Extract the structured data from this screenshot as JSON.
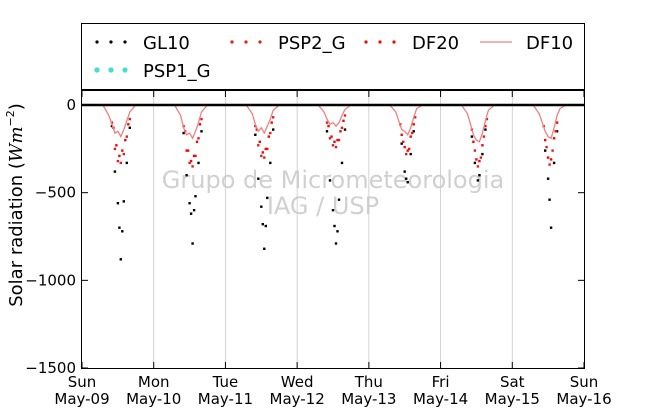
{
  "chart_data": {
    "type": "scatter",
    "title": "",
    "xlabel": "",
    "ylabel": "Solar radiation (Wm^-2)",
    "ylabel_prefix": "Solar radiation (",
    "ylabel_unit": "Wm",
    "ylabel_exp": "−2",
    "ylabel_suffix": ")",
    "ylim": [
      -1500,
      80
    ],
    "yticks": [
      {
        "value": 0,
        "label": "0"
      },
      {
        "value": -500,
        "label": "−500"
      },
      {
        "value": -1000,
        "label": "−1000"
      },
      {
        "value": -1500,
        "label": "−1500"
      }
    ],
    "xlim": [
      "2010-05-09",
      "2010-05-16"
    ],
    "xticks": [
      {
        "date": "2010-05-09",
        "day": "Sun",
        "date_label": "May-09"
      },
      {
        "date": "2010-05-10",
        "day": "Mon",
        "date_label": "May-10"
      },
      {
        "date": "2010-05-11",
        "day": "Tue",
        "date_label": "May-11"
      },
      {
        "date": "2010-05-12",
        "day": "Wed",
        "date_label": "May-12"
      },
      {
        "date": "2010-05-13",
        "day": "Thu",
        "date_label": "May-13"
      },
      {
        "date": "2010-05-14",
        "day": "Fri",
        "date_label": "May-14"
      },
      {
        "date": "2010-05-15",
        "day": "Sat",
        "date_label": "May-15"
      },
      {
        "date": "2010-05-16",
        "day": "Sun",
        "date_label": "May-16"
      }
    ],
    "grid": true,
    "legend_placement": "top",
    "watermark": [
      "Grupo de Micrometeorologia",
      "IAG / USP"
    ],
    "series": [
      {
        "name": "GL10",
        "marker": "dots",
        "color": "#000000",
        "points": [
          [
            "2010-05-09T10:00",
            -120
          ],
          [
            "2010-05-09T11:00",
            -380
          ],
          [
            "2010-05-09T12:00",
            -560
          ],
          [
            "2010-05-09T12:30",
            -700
          ],
          [
            "2010-05-09T13:00",
            -880
          ],
          [
            "2010-05-09T13:30",
            -720
          ],
          [
            "2010-05-09T14:00",
            -550
          ],
          [
            "2010-05-09T15:00",
            -330
          ],
          [
            "2010-05-09T16:00",
            -130
          ],
          [
            "2010-05-10T10:00",
            -160
          ],
          [
            "2010-05-10T11:00",
            -400
          ],
          [
            "2010-05-10T12:00",
            -560
          ],
          [
            "2010-05-10T12:30",
            -620
          ],
          [
            "2010-05-10T13:00",
            -790
          ],
          [
            "2010-05-10T13:30",
            -600
          ],
          [
            "2010-05-10T14:00",
            -520
          ],
          [
            "2010-05-10T15:00",
            -330
          ],
          [
            "2010-05-10T16:00",
            -150
          ],
          [
            "2010-05-11T10:00",
            -170
          ],
          [
            "2010-05-11T11:00",
            -420
          ],
          [
            "2010-05-11T12:00",
            -580
          ],
          [
            "2010-05-11T12:30",
            -680
          ],
          [
            "2010-05-11T13:00",
            -820
          ],
          [
            "2010-05-11T13:30",
            -690
          ],
          [
            "2010-05-11T14:00",
            -530
          ],
          [
            "2010-05-11T15:00",
            -330
          ],
          [
            "2010-05-11T16:00",
            -140
          ],
          [
            "2010-05-12T10:00",
            -150
          ],
          [
            "2010-05-12T11:00",
            -430
          ],
          [
            "2010-05-12T12:00",
            -600
          ],
          [
            "2010-05-12T12:30",
            -690
          ],
          [
            "2010-05-12T13:00",
            -790
          ],
          [
            "2010-05-12T13:30",
            -720
          ],
          [
            "2010-05-12T14:00",
            -540
          ],
          [
            "2010-05-12T15:00",
            -330
          ],
          [
            "2010-05-12T16:00",
            -140
          ],
          [
            "2010-05-13T11:00",
            -220
          ],
          [
            "2010-05-13T12:00",
            -380
          ],
          [
            "2010-05-13T12:30",
            -420
          ],
          [
            "2010-05-13T13:00",
            -440
          ],
          [
            "2010-05-13T14:00",
            -280
          ],
          [
            "2010-05-13T15:00",
            -150
          ],
          [
            "2010-05-14T10:30",
            -180
          ],
          [
            "2010-05-14T11:30",
            -330
          ],
          [
            "2010-05-14T12:30",
            -430
          ],
          [
            "2010-05-14T13:00",
            -400
          ],
          [
            "2010-05-14T14:00",
            -280
          ],
          [
            "2010-05-14T15:00",
            -140
          ],
          [
            "2010-05-15T11:00",
            -260
          ],
          [
            "2010-05-15T12:00",
            -420
          ],
          [
            "2010-05-15T12:30",
            -540
          ],
          [
            "2010-05-15T13:00",
            -700
          ],
          [
            "2010-05-15T14:00",
            -330
          ],
          [
            "2010-05-15T15:00",
            -150
          ]
        ]
      },
      {
        "name": "PSP2_G",
        "marker": "dots",
        "color": "#e41a1c",
        "points": [
          [
            "2010-05-09T10:00",
            -100
          ],
          [
            "2010-05-09T11:00",
            -250
          ],
          [
            "2010-05-09T12:00",
            -320
          ],
          [
            "2010-05-09T13:00",
            -330
          ],
          [
            "2010-05-09T14:00",
            -280
          ],
          [
            "2010-05-09T15:00",
            -180
          ],
          [
            "2010-05-09T16:00",
            -80
          ],
          [
            "2010-05-10T10:00",
            -120
          ],
          [
            "2010-05-10T11:00",
            -260
          ],
          [
            "2010-05-10T12:00",
            -330
          ],
          [
            "2010-05-10T13:00",
            -350
          ],
          [
            "2010-05-10T14:00",
            -290
          ],
          [
            "2010-05-10T15:00",
            -190
          ],
          [
            "2010-05-10T16:00",
            -80
          ],
          [
            "2010-05-11T10:00",
            -120
          ],
          [
            "2010-05-11T11:00",
            -230
          ],
          [
            "2010-05-11T12:00",
            -290
          ],
          [
            "2010-05-11T13:00",
            -300
          ],
          [
            "2010-05-11T14:00",
            -250
          ],
          [
            "2010-05-11T15:00",
            -160
          ],
          [
            "2010-05-11T16:00",
            -70
          ],
          [
            "2010-05-12T10:00",
            -100
          ],
          [
            "2010-05-12T11:00",
            -190
          ],
          [
            "2010-05-12T12:00",
            -230
          ],
          [
            "2010-05-12T13:00",
            -240
          ],
          [
            "2010-05-12T14:00",
            -200
          ],
          [
            "2010-05-12T15:00",
            -130
          ],
          [
            "2010-05-12T16:00",
            -60
          ],
          [
            "2010-05-13T10:30",
            -110
          ],
          [
            "2010-05-13T11:30",
            -210
          ],
          [
            "2010-05-13T12:30",
            -280
          ],
          [
            "2010-05-13T13:30",
            -250
          ],
          [
            "2010-05-13T14:30",
            -160
          ],
          [
            "2010-05-13T15:30",
            -70
          ],
          [
            "2010-05-14T10:30",
            -140
          ],
          [
            "2010-05-14T11:30",
            -260
          ],
          [
            "2010-05-14T12:30",
            -350
          ],
          [
            "2010-05-14T13:30",
            -300
          ],
          [
            "2010-05-14T14:30",
            -180
          ],
          [
            "2010-05-14T15:30",
            -80
          ],
          [
            "2010-05-15T10:30",
            -120
          ],
          [
            "2010-05-15T11:30",
            -240
          ],
          [
            "2010-05-15T12:30",
            -340
          ],
          [
            "2010-05-15T13:30",
            -260
          ],
          [
            "2010-05-15T14:30",
            -150
          ]
        ]
      },
      {
        "name": "DF20",
        "marker": "dots",
        "color": "#ff0000",
        "points": [
          [
            "2010-05-09T10:30",
            -130
          ],
          [
            "2010-05-09T11:30",
            -230
          ],
          [
            "2010-05-09T12:30",
            -290
          ],
          [
            "2010-05-09T13:30",
            -260
          ],
          [
            "2010-05-09T14:30",
            -200
          ],
          [
            "2010-05-09T15:30",
            -110
          ],
          [
            "2010-05-10T10:30",
            -150
          ],
          [
            "2010-05-10T11:30",
            -260
          ],
          [
            "2010-05-10T12:30",
            -320
          ],
          [
            "2010-05-10T13:30",
            -290
          ],
          [
            "2010-05-10T14:30",
            -210
          ],
          [
            "2010-05-10T15:30",
            -110
          ],
          [
            "2010-05-11T10:30",
            -140
          ],
          [
            "2010-05-11T11:30",
            -210
          ],
          [
            "2010-05-11T12:30",
            -270
          ],
          [
            "2010-05-11T13:30",
            -250
          ],
          [
            "2010-05-11T14:30",
            -180
          ],
          [
            "2010-05-11T15:30",
            -100
          ],
          [
            "2010-05-12T10:30",
            -120
          ],
          [
            "2010-05-12T11:30",
            -180
          ],
          [
            "2010-05-12T12:30",
            -210
          ],
          [
            "2010-05-12T13:30",
            -200
          ],
          [
            "2010-05-12T14:30",
            -150
          ],
          [
            "2010-05-12T15:30",
            -90
          ],
          [
            "2010-05-13T11:00",
            -170
          ],
          [
            "2010-05-13T12:00",
            -240
          ],
          [
            "2010-05-13T13:00",
            -260
          ],
          [
            "2010-05-13T14:00",
            -180
          ],
          [
            "2010-05-13T15:00",
            -110
          ],
          [
            "2010-05-14T11:00",
            -210
          ],
          [
            "2010-05-14T12:00",
            -310
          ],
          [
            "2010-05-14T13:00",
            -320
          ],
          [
            "2010-05-14T14:00",
            -230
          ],
          [
            "2010-05-14T15:00",
            -120
          ],
          [
            "2010-05-15T11:00",
            -200
          ],
          [
            "2010-05-15T12:00",
            -300
          ],
          [
            "2010-05-15T13:00",
            -310
          ],
          [
            "2010-05-15T14:00",
            -190
          ],
          [
            "2010-05-15T15:00",
            -100
          ]
        ]
      },
      {
        "name": "DF10",
        "marker": "line",
        "color": "#f08080",
        "points": [
          [
            "2010-05-09T00:00",
            0
          ],
          [
            "2010-05-09T07:00",
            0
          ],
          [
            "2010-05-09T09:00",
            -60
          ],
          [
            "2010-05-09T10:00",
            -110
          ],
          [
            "2010-05-09T11:00",
            -160
          ],
          [
            "2010-05-09T12:00",
            -150
          ],
          [
            "2010-05-09T13:00",
            -180
          ],
          [
            "2010-05-09T14:00",
            -140
          ],
          [
            "2010-05-09T15:00",
            -90
          ],
          [
            "2010-05-09T16:00",
            -40
          ],
          [
            "2010-05-09T18:00",
            0
          ],
          [
            "2010-05-10T07:00",
            0
          ],
          [
            "2010-05-10T09:00",
            -60
          ],
          [
            "2010-05-10T10:00",
            -130
          ],
          [
            "2010-05-10T11:00",
            -170
          ],
          [
            "2010-05-10T12:00",
            -160
          ],
          [
            "2010-05-10T13:00",
            -190
          ],
          [
            "2010-05-10T14:00",
            -150
          ],
          [
            "2010-05-10T15:00",
            -100
          ],
          [
            "2010-05-10T16:00",
            -40
          ],
          [
            "2010-05-10T18:00",
            0
          ],
          [
            "2010-05-11T07:00",
            0
          ],
          [
            "2010-05-11T09:00",
            -50
          ],
          [
            "2010-05-11T10:00",
            -110
          ],
          [
            "2010-05-11T11:00",
            -150
          ],
          [
            "2010-05-11T12:00",
            -130
          ],
          [
            "2010-05-11T13:00",
            -160
          ],
          [
            "2010-05-11T14:00",
            -120
          ],
          [
            "2010-05-11T15:00",
            -80
          ],
          [
            "2010-05-11T16:00",
            -30
          ],
          [
            "2010-05-11T18:00",
            0
          ],
          [
            "2010-05-12T07:00",
            0
          ],
          [
            "2010-05-12T09:00",
            -40
          ],
          [
            "2010-05-12T10:00",
            -80
          ],
          [
            "2010-05-12T11:00",
            -110
          ],
          [
            "2010-05-12T12:00",
            -100
          ],
          [
            "2010-05-12T13:00",
            -120
          ],
          [
            "2010-05-12T14:00",
            -100
          ],
          [
            "2010-05-12T15:00",
            -60
          ],
          [
            "2010-05-12T16:00",
            -25
          ],
          [
            "2010-05-12T18:00",
            0
          ],
          [
            "2010-05-13T07:00",
            0
          ],
          [
            "2010-05-13T09:00",
            -40
          ],
          [
            "2010-05-13T10:00",
            -90
          ],
          [
            "2010-05-13T11:00",
            -140
          ],
          [
            "2010-05-13T12:00",
            -150
          ],
          [
            "2010-05-13T13:00",
            -170
          ],
          [
            "2010-05-13T14:00",
            -130
          ],
          [
            "2010-05-13T15:00",
            -70
          ],
          [
            "2010-05-13T16:00",
            -20
          ],
          [
            "2010-05-13T18:00",
            0
          ],
          [
            "2010-05-14T07:00",
            0
          ],
          [
            "2010-05-14T09:00",
            -50
          ],
          [
            "2010-05-14T10:00",
            -110
          ],
          [
            "2010-05-14T11:00",
            -170
          ],
          [
            "2010-05-14T12:00",
            -200
          ],
          [
            "2010-05-14T13:00",
            -210
          ],
          [
            "2010-05-14T14:00",
            -160
          ],
          [
            "2010-05-14T15:00",
            -90
          ],
          [
            "2010-05-14T16:00",
            -30
          ],
          [
            "2010-05-14T18:00",
            0
          ],
          [
            "2010-05-15T07:00",
            0
          ],
          [
            "2010-05-15T09:00",
            -50
          ],
          [
            "2010-05-15T10:00",
            -100
          ],
          [
            "2010-05-15T11:00",
            -150
          ],
          [
            "2010-05-15T12:00",
            -180
          ],
          [
            "2010-05-15T13:00",
            -190
          ],
          [
            "2010-05-15T14:00",
            -130
          ],
          [
            "2010-05-15T15:00",
            -60
          ],
          [
            "2010-05-15T16:00",
            -20
          ],
          [
            "2010-05-15T18:00",
            0
          ],
          [
            "2010-05-16T00:00",
            0
          ]
        ]
      },
      {
        "name": "PSP1_G",
        "marker": "dots",
        "color": "#40e0d0",
        "points": []
      }
    ]
  }
}
